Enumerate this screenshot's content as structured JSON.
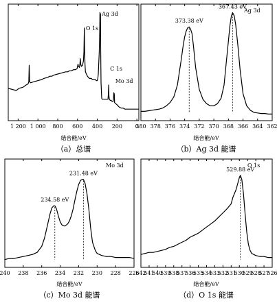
{
  "chart_data": [
    {
      "type": "line",
      "caption": "（a）总谱",
      "xlabel": "结合能/eV",
      "xlim": [
        1300,
        -20
      ],
      "x_ticks": [
        1200,
        1000,
        800,
        600,
        400,
        200,
        0
      ],
      "x_tick_labels": [
        "1 200",
        "1 000",
        "800",
        "600",
        "400",
        "200",
        "0"
      ],
      "ylabel": "",
      "annotations": [
        {
          "text": "O 1s",
          "x": 530,
          "y": 0.8
        },
        {
          "text": "Ag 3d",
          "x": 368,
          "y": 0.93
        },
        {
          "text": "C 1s",
          "x": 285,
          "y": 0.43
        },
        {
          "text": "Mo 3d",
          "x": 232,
          "y": 0.32
        }
      ],
      "series": [
        {
          "x": [
            1300,
            1260,
            1220,
            1190,
            1150,
            1120,
            1100,
            1092,
            1088,
            1084,
            1075,
            1040,
            1000,
            960,
            940,
            900,
            880,
            860,
            840,
            800,
            760,
            720,
            700,
            680,
            660,
            640,
            620,
            604,
            600,
            595,
            590,
            580,
            575,
            572,
            568,
            560,
            550,
            540,
            535,
            531,
            528,
            525,
            522,
            520,
            510,
            500,
            490,
            480,
            470,
            460,
            450,
            440,
            430,
            420,
            410,
            400,
            395,
            390,
            380,
            375,
            373,
            371,
            368,
            366,
            364,
            362,
            355,
            350,
            340,
            330,
            320,
            310,
            300,
            292,
            288,
            285,
            282,
            278,
            270,
            260,
            250,
            240,
            236,
            233,
            230,
            228,
            225,
            215,
            200,
            180,
            160,
            140,
            120,
            100,
            80,
            60,
            40,
            20,
            0,
            -20
          ],
          "y": [
            0.27,
            0.26,
            0.25,
            0.27,
            0.28,
            0.3,
            0.31,
            0.33,
            0.48,
            0.33,
            0.32,
            0.33,
            0.34,
            0.35,
            0.36,
            0.37,
            0.38,
            0.38,
            0.39,
            0.4,
            0.41,
            0.42,
            0.42,
            0.43,
            0.43,
            0.44,
            0.44,
            0.45,
            0.47,
            0.49,
            0.47,
            0.46,
            0.5,
            0.54,
            0.49,
            0.47,
            0.48,
            0.52,
            0.6,
            0.82,
            0.62,
            0.5,
            0.45,
            0.42,
            0.4,
            0.38,
            0.37,
            0.36,
            0.36,
            0.36,
            0.35,
            0.35,
            0.35,
            0.35,
            0.34,
            0.34,
            0.36,
            0.4,
            0.6,
            0.78,
            0.96,
            0.75,
            0.95,
            0.7,
            0.5,
            0.32,
            0.18,
            0.17,
            0.17,
            0.17,
            0.17,
            0.17,
            0.17,
            0.17,
            0.22,
            0.3,
            0.2,
            0.17,
            0.16,
            0.16,
            0.15,
            0.15,
            0.18,
            0.23,
            0.19,
            0.22,
            0.14,
            0.13,
            0.12,
            0.1,
            0.09,
            0.09,
            0.08,
            0.08,
            0.08,
            0.08,
            0.08,
            0.08,
            0.08,
            0.08
          ]
        }
      ]
    },
    {
      "type": "line",
      "caption": "（b）Ag 3d 能谱",
      "element_label": "Ag 3d",
      "xlabel": "结合能/eV",
      "xlim": [
        380,
        362
      ],
      "x_ticks": [
        380,
        378,
        376,
        374,
        372,
        370,
        368,
        366,
        364,
        362
      ],
      "x_tick_labels": [
        "380",
        "378",
        "376",
        "374",
        "372",
        "370",
        "368",
        "366",
        "364",
        "362"
      ],
      "peaks": [
        {
          "label": "373.38 eV",
          "x": 373.38,
          "y": 0.83
        },
        {
          "label": "367.43 eV",
          "x": 367.43,
          "y": 0.96
        }
      ],
      "series": [
        {
          "x": [
            380,
            379.5,
            379,
            378.5,
            378,
            377.5,
            377,
            376.5,
            376,
            375.5,
            375,
            374.5,
            374.2,
            374,
            373.8,
            373.6,
            373.38,
            373.2,
            373,
            372.8,
            372.5,
            372,
            371.5,
            371,
            370.5,
            370,
            369.5,
            369,
            368.6,
            368.3,
            368,
            367.8,
            367.6,
            367.43,
            367.2,
            367,
            366.7,
            366.4,
            366,
            365.5,
            365,
            364.5,
            364,
            363.5,
            363,
            362.5,
            362
          ],
          "y": [
            0.06,
            0.06,
            0.065,
            0.07,
            0.075,
            0.08,
            0.09,
            0.11,
            0.14,
            0.19,
            0.3,
            0.52,
            0.66,
            0.74,
            0.79,
            0.82,
            0.83,
            0.81,
            0.77,
            0.66,
            0.46,
            0.26,
            0.17,
            0.13,
            0.11,
            0.11,
            0.13,
            0.18,
            0.3,
            0.5,
            0.7,
            0.84,
            0.93,
            0.96,
            0.93,
            0.85,
            0.66,
            0.44,
            0.22,
            0.11,
            0.07,
            0.05,
            0.045,
            0.04,
            0.04,
            0.035,
            0.035
          ]
        }
      ]
    },
    {
      "type": "line",
      "caption": "（c）Mo 3d 能谱",
      "element_label": "Mo 3d",
      "xlabel": "结合能/eV",
      "xlim": [
        240,
        226
      ],
      "x_ticks": [
        240,
        238,
        236,
        234,
        232,
        230,
        228,
        226
      ],
      "x_tick_labels": [
        "240",
        "238",
        "236",
        "234",
        "232",
        "230",
        "228",
        "226"
      ],
      "peaks": [
        {
          "label": "234.58 eV",
          "x": 234.58,
          "y": 0.58
        },
        {
          "label": "231.48 eV",
          "x": 231.48,
          "y": 0.84
        }
      ],
      "series": [
        {
          "x": [
            240,
            239.5,
            239,
            238.5,
            238,
            237.5,
            237,
            236.5,
            236,
            235.7,
            235.4,
            235.1,
            234.9,
            234.7,
            234.58,
            234.4,
            234.2,
            234,
            233.8,
            233.5,
            233.2,
            233,
            232.8,
            232.6,
            232.4,
            232.2,
            232,
            231.8,
            231.6,
            231.48,
            231.3,
            231.1,
            230.9,
            230.7,
            230.5,
            230.2,
            230,
            229.5,
            229,
            228.5,
            228,
            227.5,
            227,
            226.5,
            226
          ],
          "y": [
            0.05,
            0.06,
            0.06,
            0.07,
            0.08,
            0.09,
            0.1,
            0.12,
            0.18,
            0.26,
            0.38,
            0.5,
            0.56,
            0.58,
            0.58,
            0.55,
            0.48,
            0.42,
            0.39,
            0.38,
            0.4,
            0.43,
            0.48,
            0.55,
            0.64,
            0.72,
            0.79,
            0.83,
            0.84,
            0.84,
            0.8,
            0.7,
            0.55,
            0.36,
            0.22,
            0.14,
            0.11,
            0.09,
            0.08,
            0.08,
            0.07,
            0.07,
            0.07,
            0.07,
            0.06
          ]
        }
      ]
    },
    {
      "type": "line",
      "caption": "（d）O 1s 能谱",
      "element_label": "O 1s",
      "xlabel": "结合能/eV",
      "xlim": [
        542,
        526
      ],
      "x_ticks": [
        542,
        541,
        540,
        539,
        538,
        537,
        536,
        535,
        534,
        533,
        532,
        531,
        530,
        529,
        528,
        527,
        526
      ],
      "x_tick_labels": [
        "542",
        "541",
        "540",
        "539",
        "538",
        "537",
        "536",
        "535",
        "534",
        "533",
        "532",
        "531",
        "530",
        "529",
        "528",
        "527",
        "526"
      ],
      "peaks": [
        {
          "label": "529.88 eV",
          "x": 529.88,
          "y": 0.88
        }
      ],
      "series": [
        {
          "x": [
            542,
            541.5,
            541,
            540.5,
            540,
            539.5,
            539,
            538.5,
            538,
            537.5,
            537,
            536.5,
            536,
            535.5,
            535,
            534.5,
            534,
            533.5,
            533,
            532.5,
            532,
            531.5,
            531,
            530.8,
            530.6,
            530.4,
            530.2,
            530,
            529.88,
            529.7,
            529.5,
            529.3,
            529.1,
            528.9,
            528.7,
            528.5,
            528,
            527.5,
            527,
            526.5,
            526
          ],
          "y": [
            0.1,
            0.11,
            0.12,
            0.12,
            0.13,
            0.14,
            0.15,
            0.17,
            0.18,
            0.2,
            0.22,
            0.24,
            0.27,
            0.29,
            0.31,
            0.34,
            0.37,
            0.4,
            0.43,
            0.47,
            0.51,
            0.55,
            0.6,
            0.66,
            0.7,
            0.74,
            0.8,
            0.86,
            0.88,
            0.84,
            0.7,
            0.5,
            0.32,
            0.2,
            0.14,
            0.11,
            0.09,
            0.08,
            0.08,
            0.07,
            0.07
          ]
        }
      ]
    }
  ]
}
